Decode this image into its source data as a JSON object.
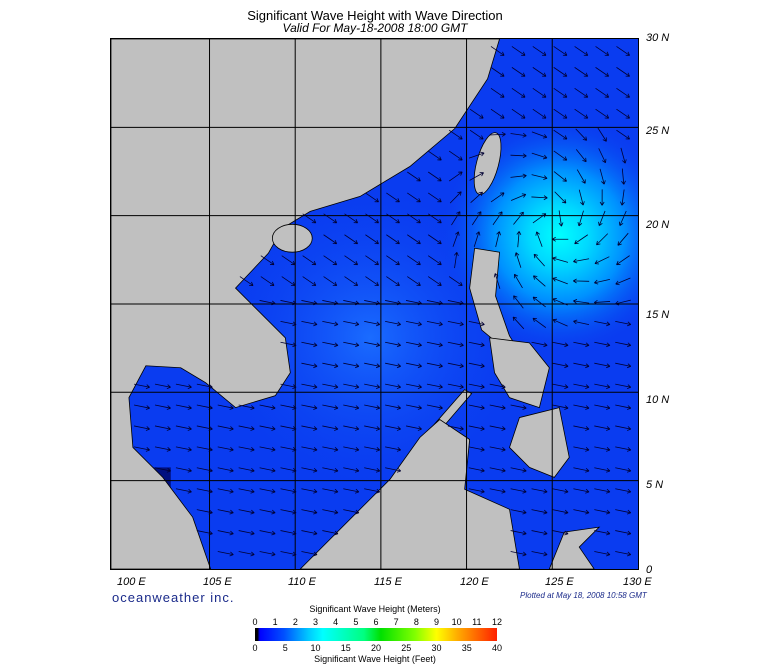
{
  "title": "Significant Wave Height with Wave Direction",
  "subtitle": "Valid For May-18-2008 18:00 GMT",
  "map": {
    "lat_labels": [
      "30 N",
      "25 N",
      "20 N",
      "15 N",
      "10 N",
      "5 N",
      "0"
    ],
    "lon_labels": [
      "100 E",
      "105 E",
      "110 E",
      "115 E",
      "120 E",
      "125 E",
      "130 E"
    ],
    "land_color": "#c0c0c0",
    "ocean_color": "#0a3cf0",
    "peak_color": "#00ffff",
    "peak_location": {
      "lon": 125,
      "lat": 19.5
    }
  },
  "logo": "oceanweather inc.",
  "plotted": "Plotted at May 18, 2008 10:58 GMT",
  "colorbar": {
    "title_meters": "Significant Wave Height (Meters)",
    "title_feet": "Significant Wave Height (Feet)",
    "meters_ticks": [
      "0",
      "1",
      "2",
      "3",
      "4",
      "5",
      "6",
      "7",
      "8",
      "9",
      "10",
      "11",
      "12"
    ],
    "feet_ticks": [
      "0",
      "5",
      "10",
      "15",
      "20",
      "25",
      "30",
      "35",
      "40"
    ]
  }
}
